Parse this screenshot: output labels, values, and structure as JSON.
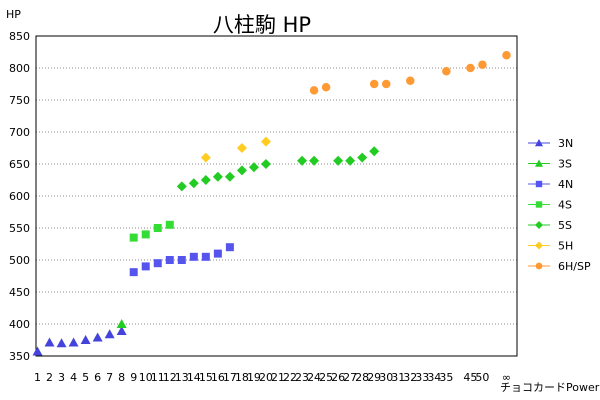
{
  "chart_data": {
    "type": "scatter",
    "title": "八柱駒 HP",
    "ylabel": "HP",
    "xlabel": "チョコカードPower",
    "ylim": [
      350,
      850
    ],
    "yticks": [
      350,
      400,
      450,
      500,
      550,
      600,
      650,
      700,
      750,
      800,
      850
    ],
    "xtick_labels": [
      "1",
      "2",
      "3",
      "4",
      "5",
      "6",
      "7",
      "8",
      "9",
      "10",
      "11",
      "12",
      "13",
      "14",
      "15",
      "16",
      "17",
      "18",
      "19",
      "20",
      "21",
      "22",
      "23",
      "24",
      "25",
      "26",
      "27",
      "28",
      "29",
      "30",
      "31",
      "32",
      "33",
      "34",
      "35",
      "",
      "45",
      "50",
      "",
      "∞"
    ],
    "grid": true,
    "legend_position": "right",
    "series": [
      {
        "name": "3N",
        "color": "#4444dd",
        "marker": "triangle",
        "x": [
          1,
          2,
          3,
          4,
          5,
          6,
          7,
          8
        ],
        "y": [
          357,
          371,
          370,
          371,
          375,
          379,
          384,
          389
        ]
      },
      {
        "name": "3S",
        "color": "#22cc22",
        "marker": "triangle",
        "x": [
          8
        ],
        "y": [
          400
        ]
      },
      {
        "name": "4N",
        "color": "#5555ee",
        "marker": "square",
        "x": [
          9,
          10,
          11,
          12,
          13,
          14,
          15,
          16,
          17
        ],
        "y": [
          481,
          490,
          495,
          500,
          500,
          505,
          505,
          510,
          520
        ]
      },
      {
        "name": "4S",
        "color": "#33dd33",
        "marker": "square",
        "x": [
          9,
          10,
          11,
          12
        ],
        "y": [
          535,
          540,
          550,
          555
        ]
      },
      {
        "name": "5S",
        "color": "#22cc22",
        "marker": "diamond",
        "x": [
          13,
          14,
          15,
          16,
          17,
          18,
          19,
          20,
          23,
          24,
          26,
          27,
          28,
          29
        ],
        "y": [
          615,
          620,
          625,
          630,
          630,
          640,
          645,
          650,
          655,
          655,
          655,
          655,
          660,
          670
        ]
      },
      {
        "name": "5H",
        "color": "#ffcc22",
        "marker": "diamond",
        "x": [
          15,
          18,
          20
        ],
        "y": [
          660,
          675,
          685
        ]
      },
      {
        "name": "6H/SP",
        "color": "#ff9933",
        "marker": "circle",
        "x": [
          24,
          25,
          29,
          30,
          32,
          35,
          45,
          50,
          100
        ],
        "y": [
          765,
          770,
          775,
          775,
          780,
          795,
          800,
          805,
          820
        ]
      }
    ]
  }
}
